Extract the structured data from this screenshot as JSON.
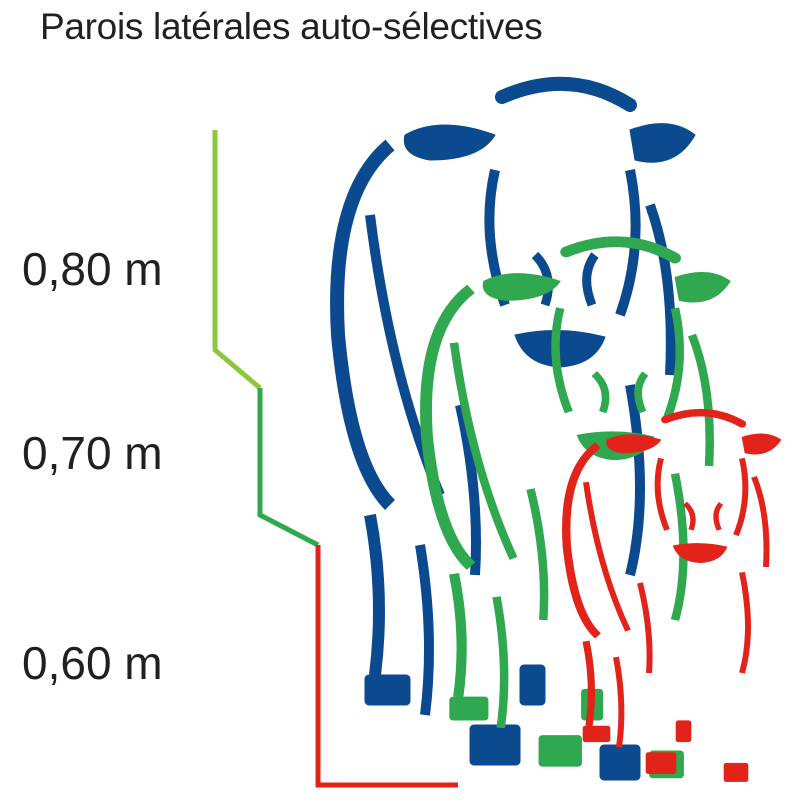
{
  "title": "Parois latérales auto-sélectives",
  "heights": [
    {
      "label": "0,80 m",
      "color": "#8dc63f"
    },
    {
      "label": "0,70 m",
      "color": "#2fa84f"
    },
    {
      "label": "0,60 m",
      "color": "#e2231a"
    }
  ],
  "cows": [
    {
      "name": "large-calf",
      "color": "#0b4a8e"
    },
    {
      "name": "medium-calf",
      "color": "#2fa84f"
    },
    {
      "name": "small-calf",
      "color": "#e2231a"
    }
  ]
}
